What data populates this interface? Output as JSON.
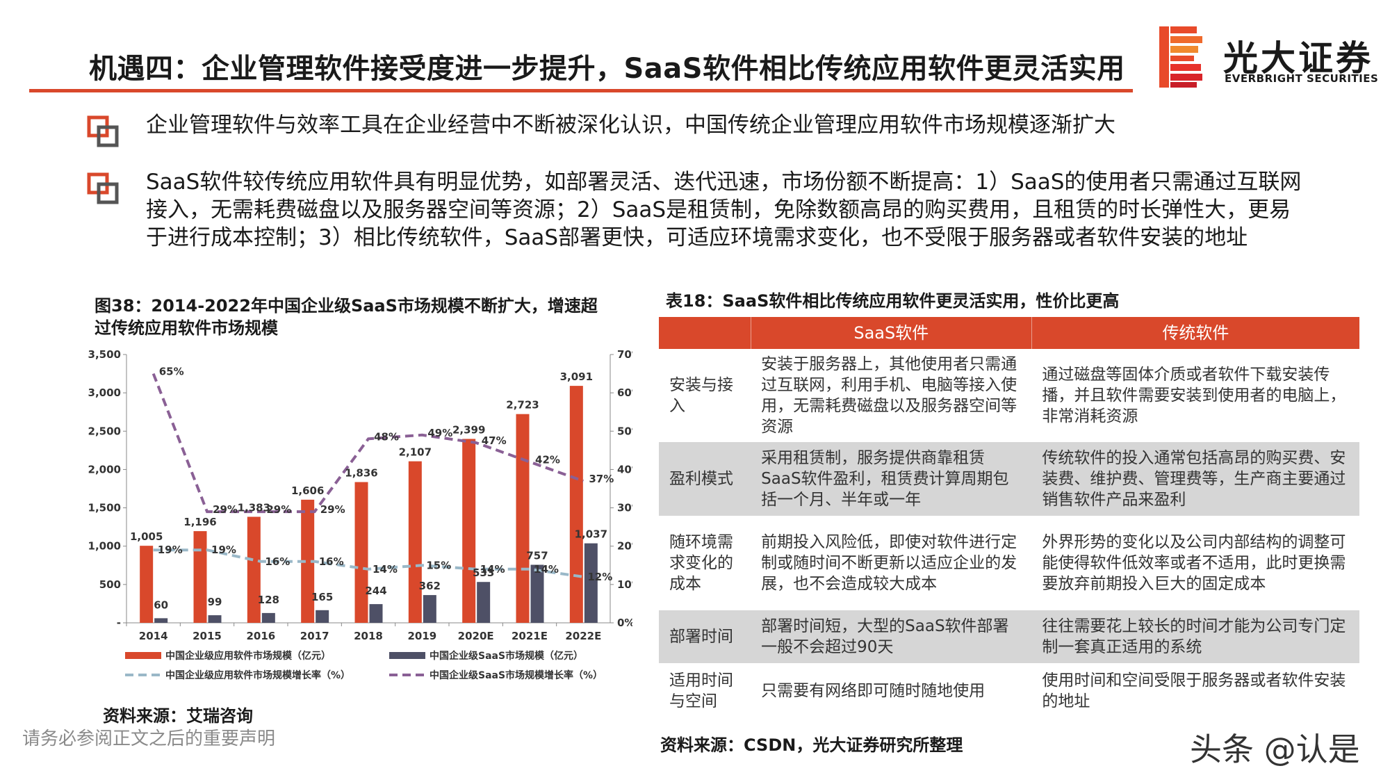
{
  "header": {
    "title": "机遇四：企业管理软件接受度进一步提升，SaaS软件相比传统应用软件更灵活实用",
    "logo_cn": "光大证券",
    "logo_en": "EVERBRIGHT SECURITIES",
    "accent_color": "#d9482b"
  },
  "bullets": [
    {
      "icon": "square-bullet-icon",
      "text": "企业管理软件与效率工具在企业经营中不断被深化认识，中国传统企业管理应用软件市场规模逐渐扩大"
    },
    {
      "icon": "square-bullet-icon",
      "text": " SaaS软件较传统应用软件具有明显优势，如部署灵活、迭代迅速，市场份额不断提高：1）SaaS的使用者只需通过互联网接入，无需耗费磁盘以及服务器空间等资源；2）SaaS是租赁制，免除数额高昂的购买费用，且租赁的时长弹性大，更易于进行成本控制；3）相比传统软件，SaaS部署更快，可适应环境需求变化，也不受限于服务器或者软件安装的地址"
    }
  ],
  "figure": {
    "title": "图38：2014-2022年中国企业级SaaS市场规模不断扩大，增速超过传统应用软件市场规模",
    "source": "资料来源：艾瑞咨询"
  },
  "chart_data": {
    "type": "bar",
    "categories": [
      "2014",
      "2015",
      "2016",
      "2017",
      "2018",
      "2019",
      "2020E",
      "2021E",
      "2022E"
    ],
    "left_axis": {
      "ticks": [
        "3,500",
        "3,000",
        "2,500",
        "2,000",
        "1,500",
        "1,000",
        "500",
        "-"
      ],
      "ylim": [
        0,
        3500
      ]
    },
    "right_axis": {
      "ticks": [
        "70%",
        "60%",
        "50%",
        "40%",
        "30%",
        "20%",
        "10%",
        "0%"
      ],
      "ylim": [
        0,
        70
      ]
    },
    "series": [
      {
        "name": "中国企业级应用软件市场规模（亿元）",
        "kind": "bar",
        "axis": "left",
        "color": "#d9482b",
        "values": [
          1005,
          1196,
          1383,
          1606,
          1836,
          2107,
          2399,
          2723,
          3091
        ],
        "labels": [
          "1,005",
          "1,196",
          "1,383",
          "1,606",
          "1,836",
          "2,107",
          "2,399",
          "2,723",
          "3,091"
        ]
      },
      {
        "name": "中国企业级SaaS市场规模（亿元）",
        "kind": "bar",
        "axis": "left",
        "color": "#4e5066",
        "values": [
          60,
          99,
          128,
          165,
          244,
          362,
          533,
          757,
          1037
        ],
        "labels": [
          "60",
          "99",
          "128",
          "165",
          "244",
          "362",
          "533",
          "757",
          "1,037"
        ]
      },
      {
        "name": "中国企业级应用软件市场规模增长率（%）",
        "kind": "line",
        "axis": "right",
        "color": "#9ab8c8",
        "values": [
          19,
          19,
          16,
          16,
          14,
          15,
          14,
          14,
          12
        ],
        "labels": [
          "19%",
          "19%",
          "16%",
          "16%",
          "14%",
          "15%",
          "14%",
          "14%",
          "12%"
        ]
      },
      {
        "name": "中国企业级SaaS市场规模增长率（%）",
        "kind": "line",
        "axis": "right",
        "color": "#8a6095",
        "values": [
          65,
          29,
          29,
          29,
          48,
          49,
          47,
          42,
          37
        ],
        "labels": [
          "65%",
          "29%",
          "29%",
          "29%",
          "48%",
          "49%",
          "47%",
          "42%",
          "37%"
        ]
      }
    ],
    "legend_placement": "bottom",
    "grid": false
  },
  "table": {
    "title": "表18：SaaS软件相比传统应用软件更灵活实用，性价比更高",
    "headers": [
      "",
      "SaaS软件",
      "传统软件"
    ],
    "rows": [
      [
        "安装与接入",
        "安装于服务器上，其他使用者只需通过互联网，利用手机、电脑等接入使用，无需耗费磁盘以及服务器空间等资源",
        "通过磁盘等固体介质或者软件下载安装传播，并且软件需要安装到使用者的电脑上，非常消耗资源"
      ],
      [
        "盈利模式",
        "采用租赁制，服务提供商靠租赁SaaS软件盈利，租赁费计算周期包括一个月、半年或一年",
        "传统软件的投入通常包括高昂的购买费、安装费、维护费、管理费等，生产商主要通过销售软件产品来盈利"
      ],
      [
        "随环境需求变化的成本",
        "前期投入风险低，即使对软件进行定制或随时间不断更新以适应企业的发展，也不会造成较大成本",
        "外界形势的变化以及公司内部结构的调整可能使得软件低效率或者不适用，此时更换需要放弃前期投入巨大的固定成本"
      ],
      [
        "部署时间",
        "部署时间短，大型的SaaS软件部署一般不会超过90天",
        "往往需要花上较长的时间才能为公司专门定制一套真正适用的系统"
      ],
      [
        "适用时间与空间",
        "只需要有网络即可随时随地使用",
        "使用时间和空间受限于服务器或者软件安装的地址"
      ]
    ],
    "source": "资料来源：CSDN，光大证券研究所整理"
  },
  "footer": {
    "disclaimer": "请务必参阅正文之后的重要声明",
    "watermark": "头条 @认是"
  }
}
